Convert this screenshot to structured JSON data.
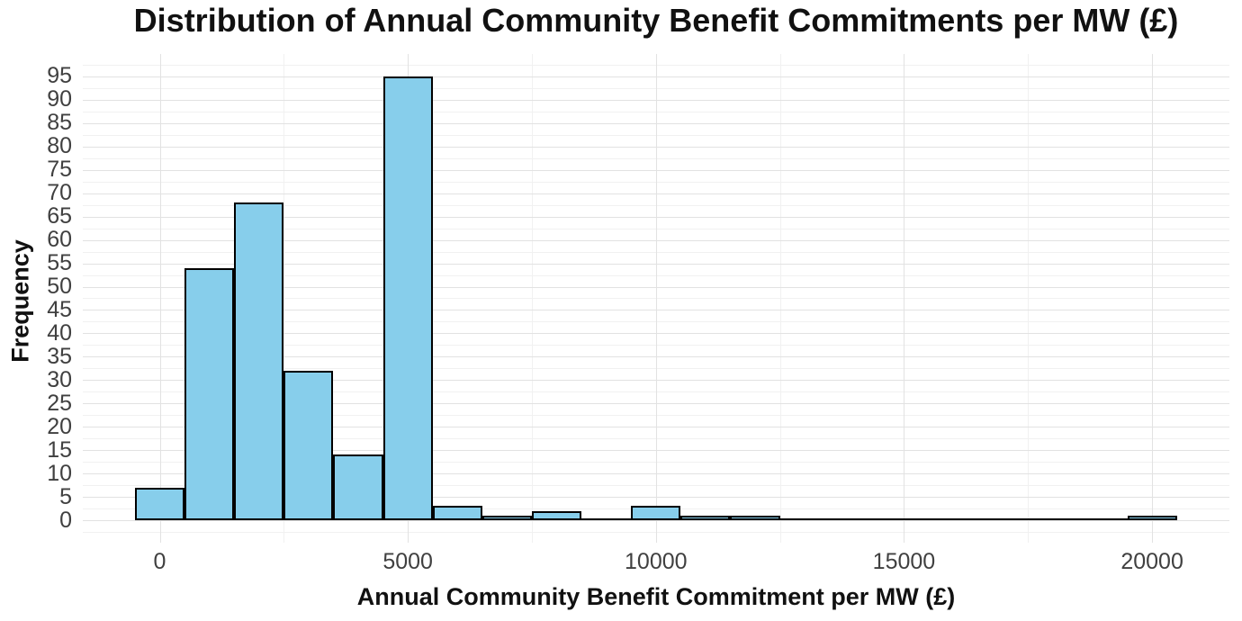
{
  "title": "Distribution of Annual Community Benefit Commitments per MW (£)",
  "chart_data": {
    "type": "bar",
    "subtype": "histogram",
    "title": "Distribution of Annual Community Benefit Commitments per MW (£)",
    "xlabel": "Annual Community Benefit Commitment per MW (£)",
    "ylabel": "Frequency",
    "bin_width": 1000,
    "bin_centers": [
      0,
      1000,
      2000,
      3000,
      4000,
      5000,
      6000,
      7000,
      8000,
      9000,
      10000,
      11000,
      12000,
      13000,
      14000,
      15000,
      16000,
      17000,
      18000,
      19000,
      20000
    ],
    "values": [
      7,
      54,
      68,
      32,
      14,
      95,
      3,
      1,
      2,
      0,
      3,
      1,
      1,
      0,
      0,
      0,
      0,
      0,
      0,
      0,
      1
    ],
    "x_ticks": [
      0,
      5000,
      10000,
      15000,
      20000
    ],
    "x_tick_labels": [
      "0",
      "5000",
      "10000",
      "15000",
      "20000"
    ],
    "x_minor_ticks": [
      2500,
      7500,
      12500,
      17500
    ],
    "y_ticks": [
      0,
      5,
      10,
      15,
      20,
      25,
      30,
      35,
      40,
      45,
      50,
      55,
      60,
      65,
      70,
      75,
      80,
      85,
      90,
      95
    ],
    "y_minor_ticks": [
      -2.5,
      2.5,
      7.5,
      12.5,
      17.5,
      22.5,
      27.5,
      32.5,
      37.5,
      42.5,
      47.5,
      52.5,
      57.5,
      62.5,
      67.5,
      72.5,
      77.5,
      82.5,
      87.5,
      92.5,
      97.5
    ],
    "xlim": [
      -1550,
      21550
    ],
    "ylim": [
      -4.75,
      99.75
    ],
    "grid": "major+minor",
    "legend": "none",
    "colors": {
      "bar_fill": "#87CEEB",
      "bar_stroke": "#000000",
      "grid_major": "#e2e2e2",
      "grid_minor": "#f1f1f1",
      "tick_label": "#404040",
      "text": "#111111",
      "background": "#ffffff"
    }
  }
}
